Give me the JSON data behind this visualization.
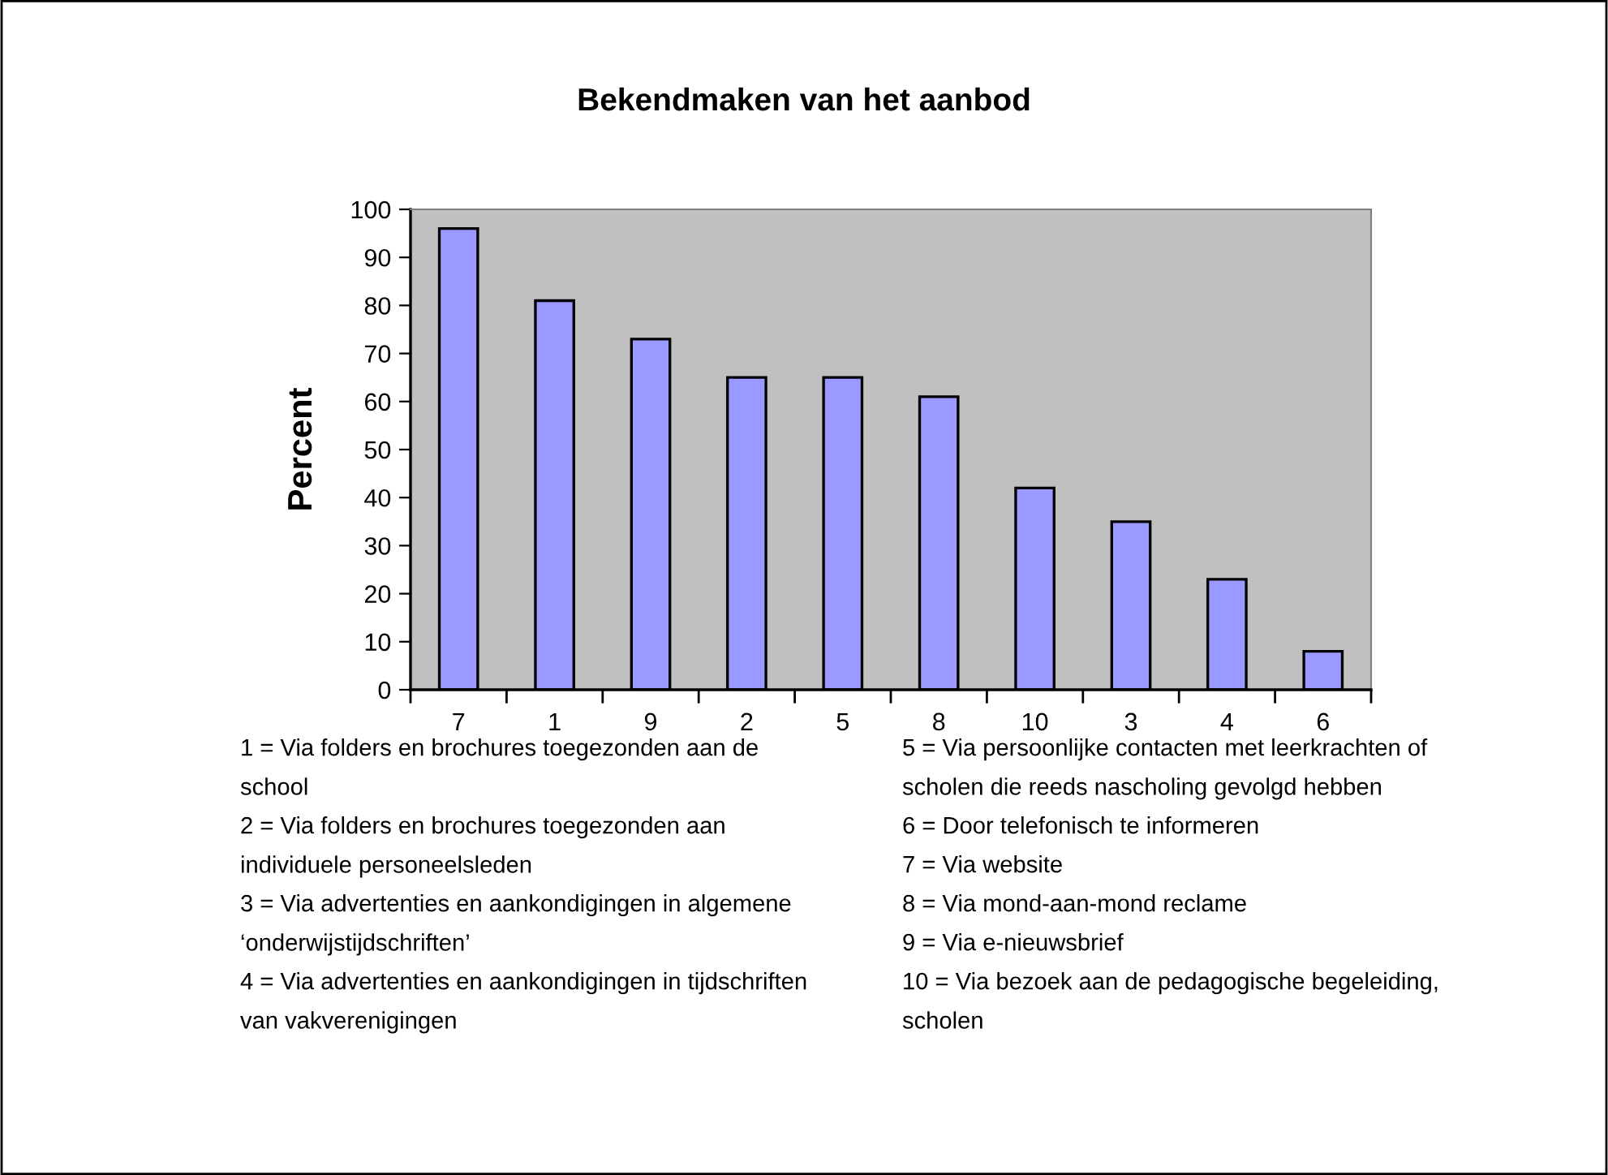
{
  "chart_data": {
    "type": "bar",
    "title": "Bekendmaken van het aanbod",
    "ylabel": "Percent",
    "categories": [
      "7",
      "1",
      "9",
      "2",
      "5",
      "8",
      "10",
      "3",
      "4",
      "6"
    ],
    "values": [
      96,
      81,
      73,
      65,
      65,
      61,
      42,
      35,
      23,
      8
    ],
    "color": "#9999ff",
    "ylim": [
      0,
      100
    ],
    "yticks": [
      0,
      10,
      20,
      30,
      40,
      50,
      60,
      70,
      80,
      90,
      100
    ],
    "grid": false,
    "legend": false,
    "annotations": [
      "1 = Via folders en brochures toegezonden aan de\nschool",
      "2 = Via folders en brochures toegezonden aan\nindividuele personeelsleden",
      "3 = Via advertenties en aankondigingen in algemene\n‘onderwijstijdschriften’",
      "4 = Via advertenties en aankondigingen in tijdschriften\nvan vakverenigingen",
      "5 = Via persoonlijke contacten met leerkrachten of\nscholen die reeds nascholing gevolgd hebben",
      "6 = Door telefonisch te informeren",
      "7 = Via website",
      "8 = Via mond-aan-mond reclame",
      "9 = Via e-nieuwsbrief",
      "10 = Via bezoek aan de pedagogische begeleiding,\nscholen"
    ]
  }
}
